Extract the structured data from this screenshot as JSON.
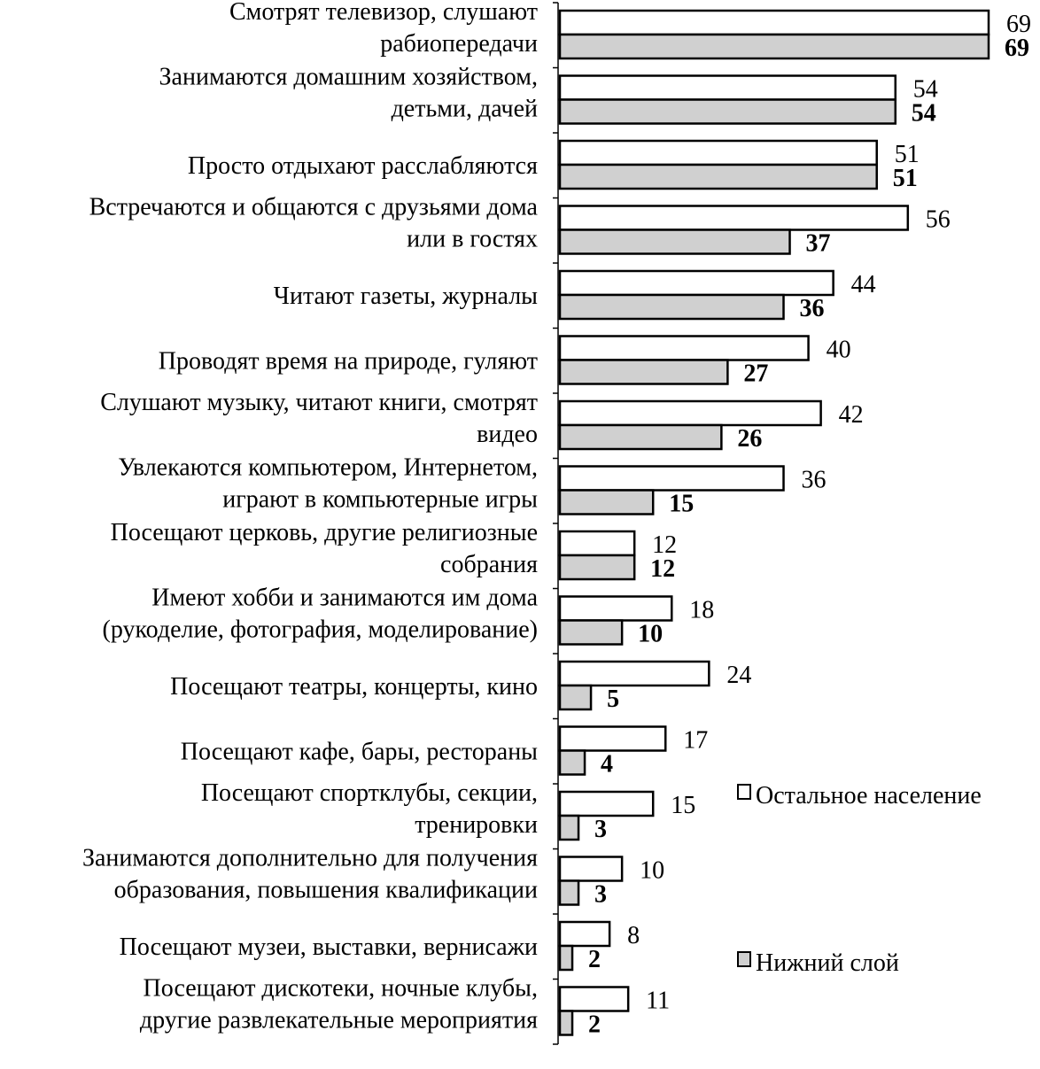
{
  "chart_data": {
    "type": "bar",
    "orientation": "horizontal",
    "title": "",
    "xlabel": "",
    "ylabel": "",
    "xlim": [
      0,
      69
    ],
    "grid": false,
    "legend_placement": "right",
    "categories": [
      [
        "Смотрят телевизор, слушают",
        "рабиопередачи"
      ],
      [
        "Занимаются домашним хозяйством,",
        "детьми, дачей"
      ],
      [
        "Просто отдыхают расслабляются"
      ],
      [
        "Встречаются и общаются с друзьями дома",
        "или в гостях"
      ],
      [
        "Читают газеты, журналы"
      ],
      [
        "Проводят время на природе, гуляют"
      ],
      [
        "Слушают музыку, читают книги, смотрят",
        "видео"
      ],
      [
        "Увлекаются компьютером, Интернетом,",
        "играют в компьютерные игры"
      ],
      [
        "Посещают церковь, другие религиозные",
        "собрания"
      ],
      [
        "Имеют хобби и занимаются им дома",
        "(рукоделие, фотография, моделирование)"
      ],
      [
        "Посещают театры, концерты, кино"
      ],
      [
        "Посещают кафе, бары, рестораны"
      ],
      [
        "Посещают спортклубы, секции,",
        "тренировки"
      ],
      [
        "Занимаются дополнительно для получения",
        "образования, повышения квалификации"
      ],
      [
        "Посещают музеи, выставки, вернисажи"
      ],
      [
        "Посещают дискотеки, ночные клубы,",
        "другие развлекательные мероприятия"
      ]
    ],
    "series": [
      {
        "name": "Остальное население",
        "color": "#ffffff",
        "values": [
          69,
          54,
          51,
          56,
          44,
          40,
          42,
          36,
          12,
          18,
          24,
          17,
          15,
          10,
          8,
          11
        ]
      },
      {
        "name": "Нижний слой",
        "color": "#d0d0d0",
        "values": [
          69,
          54,
          51,
          37,
          36,
          27,
          26,
          15,
          12,
          10,
          5,
          4,
          3,
          3,
          2,
          2
        ]
      }
    ]
  }
}
